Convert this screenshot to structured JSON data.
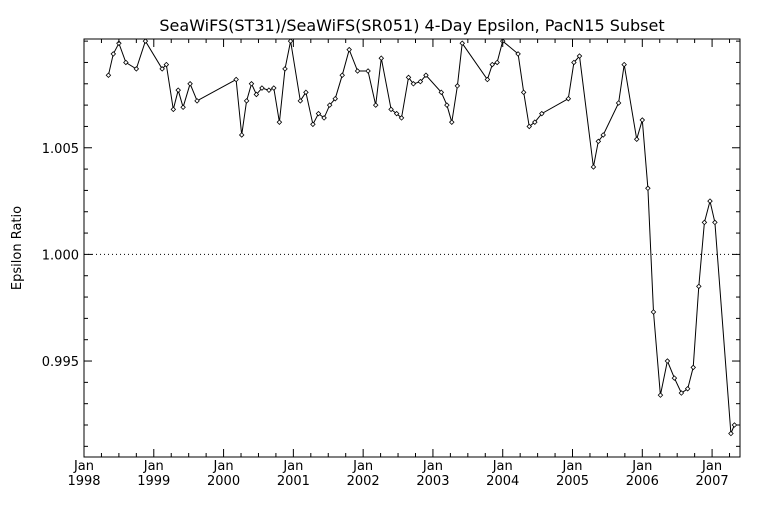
{
  "chart_data": {
    "type": "line",
    "title": "SeaWiFS(ST31)/SeaWiFS(SR051) 4-Day Epsilon, PacN15 Subset",
    "xlabel": "",
    "ylabel": "Epsilon Ratio",
    "xlim": [
      1998.0,
      2007.4
    ],
    "ylim": [
      0.9905,
      1.0101
    ],
    "y_ticks": [
      {
        "value": 0.995,
        "label": "0.995"
      },
      {
        "value": 1.0,
        "label": "1.000"
      },
      {
        "value": 1.005,
        "label": "1.005"
      }
    ],
    "x_ticks": [
      {
        "value": 1998,
        "month": "Jan",
        "year": "1998"
      },
      {
        "value": 1999,
        "month": "Jan",
        "year": "1999"
      },
      {
        "value": 2000,
        "month": "Jan",
        "year": "2000"
      },
      {
        "value": 2001,
        "month": "Jan",
        "year": "2001"
      },
      {
        "value": 2002,
        "month": "Jan",
        "year": "2002"
      },
      {
        "value": 2003,
        "month": "Jan",
        "year": "2003"
      },
      {
        "value": 2004,
        "month": "Jan",
        "year": "2004"
      },
      {
        "value": 2005,
        "month": "Jan",
        "year": "2005"
      },
      {
        "value": 2006,
        "month": "Jan",
        "year": "2006"
      },
      {
        "value": 2007,
        "month": "Jan",
        "year": "2007"
      }
    ],
    "reference_line": {
      "value": 1.0,
      "style": "dotted"
    },
    "grid": false,
    "series": [
      {
        "x": [
          1998.35,
          1998.42,
          1998.5,
          1998.6,
          1998.75,
          1998.88,
          1999.12,
          1999.18,
          1999.28,
          1999.35,
          1999.42,
          1999.52,
          1999.62,
          2000.18,
          2000.26,
          2000.33,
          2000.4,
          2000.47,
          2000.55,
          2000.65,
          2000.72,
          2000.8,
          2000.88,
          2000.96,
          2001.1,
          2001.18,
          2001.28,
          2001.36,
          2001.44,
          2001.52,
          2001.6,
          2001.7,
          2001.8,
          2001.92,
          2002.07,
          2002.18,
          2002.26,
          2002.4,
          2002.48,
          2002.55,
          2002.65,
          2002.72,
          2002.82,
          2002.9,
          2003.12,
          2003.2,
          2003.27,
          2003.35,
          2003.42,
          2003.78,
          2003.85,
          2003.92,
          2004.0,
          2004.22,
          2004.3,
          2004.38,
          2004.46,
          2004.56,
          2004.94,
          2005.02,
          2005.1,
          2005.3,
          2005.37,
          2005.44,
          2005.66,
          2005.74,
          2005.92,
          2006.0,
          2006.08,
          2006.16,
          2006.26,
          2006.36,
          2006.46,
          2006.56,
          2006.65,
          2006.73,
          2006.81,
          2006.89,
          2006.97,
          2007.04,
          2007.27,
          2007.32
        ],
        "y": [
          1.0084,
          1.0094,
          1.0099,
          1.009,
          1.0087,
          1.01,
          1.0087,
          1.0089,
          1.0068,
          1.0077,
          1.0069,
          1.008,
          1.0072,
          1.0082,
          1.0056,
          1.0072,
          1.008,
          1.0075,
          1.0078,
          1.0077,
          1.0078,
          1.0062,
          1.0087,
          1.01,
          1.0072,
          1.0076,
          1.0061,
          1.0066,
          1.0064,
          1.007,
          1.0073,
          1.0084,
          1.0096,
          1.0086,
          1.0086,
          1.007,
          1.0092,
          1.0068,
          1.0066,
          1.0064,
          1.0083,
          1.008,
          1.0081,
          1.0084,
          1.0076,
          1.007,
          1.0062,
          1.0079,
          1.0099,
          1.0082,
          1.0089,
          1.009,
          1.01,
          1.0094,
          1.0076,
          1.006,
          1.0062,
          1.0066,
          1.0073,
          1.009,
          1.0093,
          1.0041,
          1.0053,
          1.0056,
          1.0071,
          1.0089,
          1.0054,
          1.0063,
          1.0031,
          0.9973,
          0.9934,
          0.995,
          0.9942,
          0.9935,
          0.9937,
          0.9947,
          0.9985,
          1.0015,
          1.0025,
          1.0015,
          0.9916,
          0.992
        ]
      }
    ]
  }
}
